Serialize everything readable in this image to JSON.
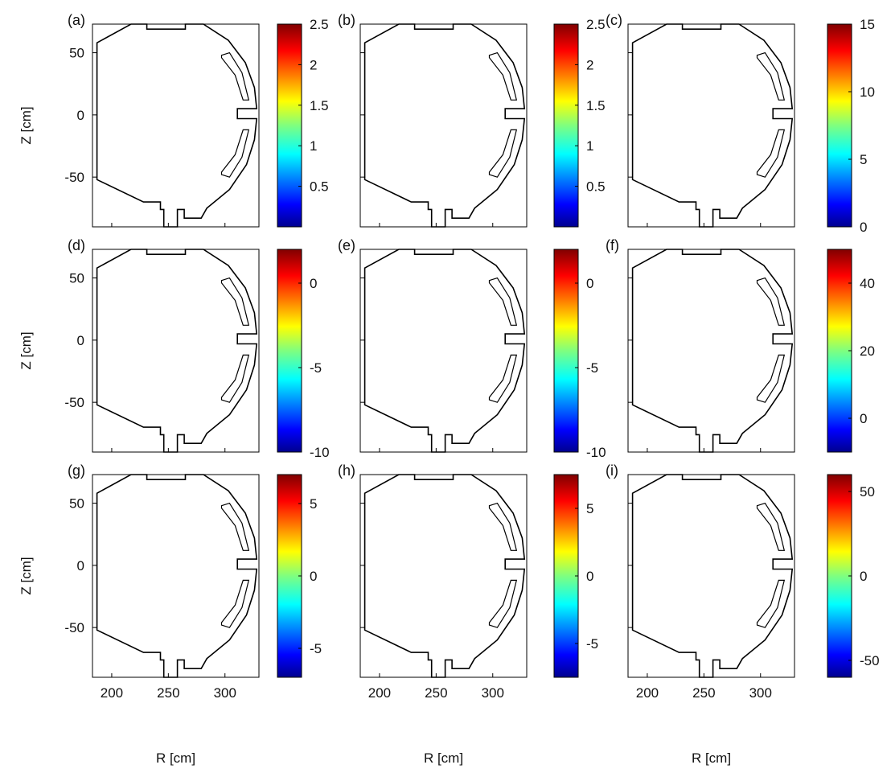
{
  "chart_data": {
    "type": "heatmap",
    "description_note": "",
    "x_axis": {
      "label": "R [cm]",
      "ticks": [
        200,
        250,
        300
      ],
      "range": [
        183,
        330
      ]
    },
    "y_axis": {
      "label": "Z [cm]",
      "ticks": [
        50,
        0,
        -50
      ],
      "range": [
        -90,
        73
      ]
    },
    "colormap": "jet",
    "panels": [
      {
        "id": "a",
        "letter": "(a)",
        "field": "low",
        "colorbar": {
          "min": 0,
          "max": 2.5,
          "ticks": [
            "2.5",
            "2",
            "1.5",
            "1",
            "0.5"
          ],
          "tick_values": [
            2.5,
            2,
            1.5,
            1,
            0.5
          ]
        }
      },
      {
        "id": "b",
        "letter": "(b)",
        "field": "low",
        "colorbar": {
          "min": 0,
          "max": 2.5,
          "ticks": [
            "2.5",
            "2",
            "1.5",
            "1",
            "0.5"
          ],
          "tick_values": [
            2.5,
            2,
            1.5,
            1,
            0.5
          ]
        }
      },
      {
        "id": "c",
        "letter": "(c)",
        "field": "dark",
        "colorbar": {
          "min": 0,
          "max": 15,
          "ticks": [
            "15",
            "10",
            "5",
            "0"
          ],
          "tick_values": [
            15,
            10,
            5,
            0
          ]
        }
      },
      {
        "id": "d",
        "letter": "(d)",
        "field": "red",
        "colorbar": {
          "min": -10,
          "max": 2,
          "ticks": [
            "0",
            "-5",
            "-10"
          ],
          "tick_values": [
            0,
            -5,
            -10
          ]
        }
      },
      {
        "id": "e",
        "letter": "(e)",
        "field": "red2",
        "colorbar": {
          "min": -10,
          "max": 2,
          "ticks": [
            "0",
            "-5",
            "-10"
          ],
          "tick_values": [
            0,
            -5,
            -10
          ]
        }
      },
      {
        "id": "f",
        "letter": "(f)",
        "field": "blue",
        "colorbar": {
          "min": -10,
          "max": 50,
          "ticks": [
            "40",
            "20",
            "0"
          ],
          "tick_values": [
            40,
            20,
            0
          ]
        }
      },
      {
        "id": "g",
        "letter": "(g)",
        "field": "green",
        "colorbar": {
          "min": -7,
          "max": 7,
          "ticks": [
            "5",
            "0",
            "-5"
          ],
          "tick_values": [
            5,
            0,
            -5
          ]
        }
      },
      {
        "id": "h",
        "letter": "(h)",
        "field": "green",
        "colorbar": {
          "min": -7.5,
          "max": 7.5,
          "ticks": [
            "5",
            "0",
            "-5"
          ],
          "tick_values": [
            5,
            0,
            -5
          ]
        }
      },
      {
        "id": "i",
        "letter": "(i)",
        "field": "green",
        "colorbar": {
          "min": -60,
          "max": 60,
          "ticks": [
            "50",
            "0",
            "-50"
          ],
          "tick_values": [
            50,
            0,
            -50
          ]
        }
      }
    ]
  },
  "colors": {
    "jet_low": "#00008f",
    "jet_cyan": "#5ff0df",
    "jet_red": "#f02a10",
    "jet_blue": "#0a3ce8",
    "jet_green": "#7ef07a"
  }
}
